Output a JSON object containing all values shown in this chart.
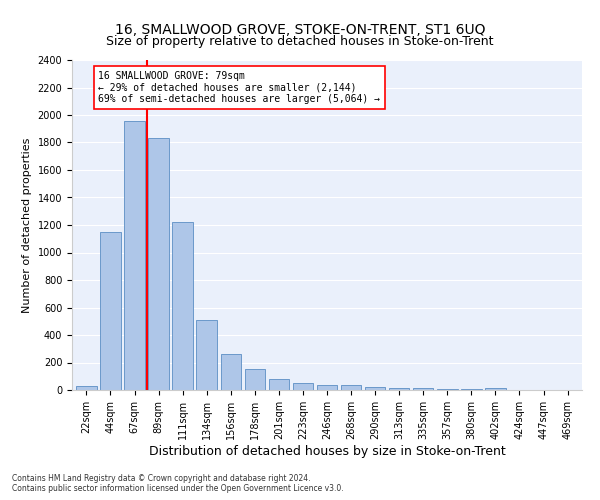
{
  "title": "16, SMALLWOOD GROVE, STOKE-ON-TRENT, ST1 6UQ",
  "subtitle": "Size of property relative to detached houses in Stoke-on-Trent",
  "xlabel": "Distribution of detached houses by size in Stoke-on-Trent",
  "ylabel": "Number of detached properties",
  "bar_labels": [
    "22sqm",
    "44sqm",
    "67sqm",
    "89sqm",
    "111sqm",
    "134sqm",
    "156sqm",
    "178sqm",
    "201sqm",
    "223sqm",
    "246sqm",
    "268sqm",
    "290sqm",
    "313sqm",
    "335sqm",
    "357sqm",
    "380sqm",
    "402sqm",
    "424sqm",
    "447sqm",
    "469sqm"
  ],
  "bar_values": [
    30,
    1150,
    1960,
    1830,
    1220,
    510,
    265,
    150,
    80,
    50,
    40,
    35,
    20,
    15,
    12,
    8,
    5,
    18,
    3,
    2,
    2
  ],
  "bar_color": "#aec6e8",
  "bar_edge_color": "#5b8ec4",
  "vline_color": "red",
  "annotation_text": "16 SMALLWOOD GROVE: 79sqm\n← 29% of detached houses are smaller (2,144)\n69% of semi-detached houses are larger (5,064) →",
  "annotation_box_color": "white",
  "annotation_box_edge_color": "red",
  "ylim": [
    0,
    2400
  ],
  "yticks": [
    0,
    200,
    400,
    600,
    800,
    1000,
    1200,
    1400,
    1600,
    1800,
    2000,
    2200,
    2400
  ],
  "footnote1": "Contains HM Land Registry data © Crown copyright and database right 2024.",
  "footnote2": "Contains public sector information licensed under the Open Government Licence v3.0.",
  "background_color": "#eaf0fb",
  "grid_color": "white",
  "title_fontsize": 10,
  "subtitle_fontsize": 9,
  "xlabel_fontsize": 9,
  "ylabel_fontsize": 8,
  "tick_fontsize": 7,
  "annot_fontsize": 7
}
